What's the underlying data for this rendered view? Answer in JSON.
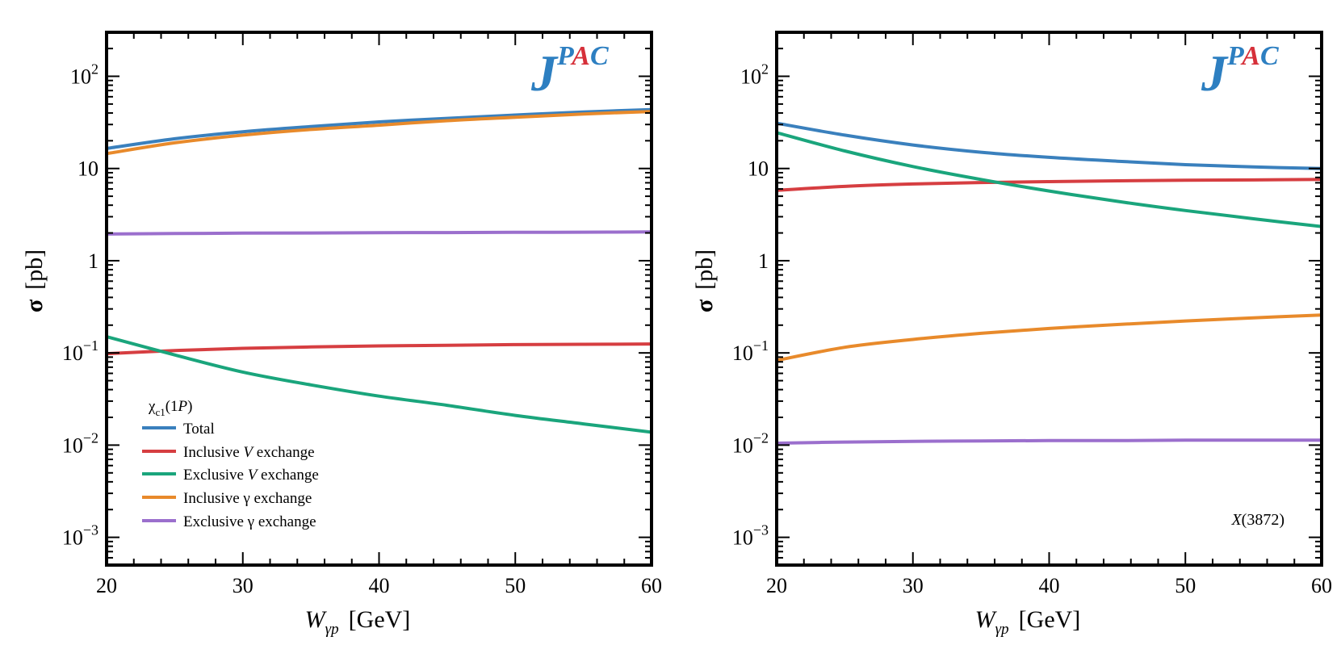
{
  "colors": {
    "total": "#3a80bd",
    "inclusive_v": "#d63e41",
    "exclusive_v": "#1aa57c",
    "inclusive_gamma": "#e88a2b",
    "exclusive_gamma": "#9b6fcd",
    "logo_j": "#2d7fc1",
    "logo_p": "#2d7fc1",
    "logo_a": "#d6303a",
    "logo_c": "#2d7fc1"
  },
  "logo": {
    "j": "J",
    "p": "P",
    "a": "A",
    "c": "C"
  },
  "chart_data": [
    {
      "type": "line",
      "panel": "left",
      "xlabel_main": "W",
      "xlabel_sub": "γp",
      "xlabel_unit": "[GeV]",
      "ylabel_symbol": "σ",
      "ylabel_unit": "[pb]",
      "xlim": [
        20,
        60
      ],
      "ylim": [
        0.0005,
        300
      ],
      "yscale": "log",
      "xticks": [
        20,
        30,
        40,
        50,
        60
      ],
      "xtick_labels": [
        "20",
        "30",
        "40",
        "50",
        "60"
      ],
      "yticks": [
        0.001,
        0.01,
        0.1,
        1,
        10,
        100
      ],
      "ytick_labels": [
        {
          "base": "10",
          "exp": "−3"
        },
        {
          "base": "10",
          "exp": "−2"
        },
        {
          "base": "10",
          "exp": "−1"
        },
        {
          "base": "1",
          "exp": ""
        },
        {
          "base": "10",
          "exp": ""
        },
        {
          "base": "10",
          "exp": "2"
        }
      ],
      "legend_title_main": "χ",
      "legend_title_sub": "c1",
      "legend_title_rest": "(1",
      "legend_title_ital": "P",
      "legend_title_close": ")",
      "legend_position": "lower-left",
      "x": [
        20,
        25,
        30,
        35,
        40,
        45,
        50,
        55,
        60
      ],
      "series": [
        {
          "key": "total",
          "pre": "Total",
          "ital": "",
          "post": "",
          "values": [
            16.5,
            21,
            25,
            28.5,
            32,
            35,
            38,
            41,
            43.5
          ]
        },
        {
          "key": "inclusive_v",
          "pre": "Inclusive ",
          "ital": "V",
          "post": " exchange",
          "values": [
            0.098,
            0.106,
            0.112,
            0.116,
            0.119,
            0.121,
            0.123,
            0.124,
            0.125
          ]
        },
        {
          "key": "exclusive_v",
          "pre": "Exclusive ",
          "ital": "V",
          "post": " exchange",
          "values": [
            0.15,
            0.095,
            0.062,
            0.045,
            0.034,
            0.027,
            0.021,
            0.017,
            0.0138
          ]
        },
        {
          "key": "inclusive_gamma",
          "pre": "Inclusive γ exchange",
          "ital": "",
          "post": "",
          "values": [
            14.5,
            19,
            23,
            26.5,
            29.5,
            33,
            36,
            39,
            41.5
          ]
        },
        {
          "key": "exclusive_gamma",
          "pre": "Exclusive γ exchange",
          "ital": "",
          "post": "",
          "values": [
            1.95,
            1.97,
            1.99,
            2.0,
            2.01,
            2.02,
            2.03,
            2.04,
            2.05
          ]
        }
      ]
    },
    {
      "type": "line",
      "panel": "right",
      "xlabel_main": "W",
      "xlabel_sub": "γp",
      "xlabel_unit": "[GeV]",
      "ylabel_symbol": "σ",
      "ylabel_unit": "[pb]",
      "xlim": [
        20,
        60
      ],
      "ylim": [
        0.0005,
        300
      ],
      "yscale": "log",
      "xticks": [
        20,
        30,
        40,
        50,
        60
      ],
      "xtick_labels": [
        "20",
        "30",
        "40",
        "50",
        "60"
      ],
      "yticks": [
        0.001,
        0.01,
        0.1,
        1,
        10,
        100
      ],
      "ytick_labels": [
        {
          "base": "10",
          "exp": "−3"
        },
        {
          "base": "10",
          "exp": "−2"
        },
        {
          "base": "10",
          "exp": "−1"
        },
        {
          "base": "1",
          "exp": ""
        },
        {
          "base": "10",
          "exp": ""
        },
        {
          "base": "10",
          "exp": "2"
        }
      ],
      "annotation_ital": "X",
      "annotation_rest": "(3872)",
      "x": [
        20,
        25,
        30,
        35,
        40,
        45,
        50,
        55,
        60
      ],
      "series": [
        {
          "key": "total",
          "values": [
            31,
            23,
            18,
            15,
            13.2,
            12,
            11,
            10.4,
            10
          ]
        },
        {
          "key": "inclusive_v",
          "values": [
            5.8,
            6.4,
            6.8,
            7.05,
            7.2,
            7.35,
            7.45,
            7.52,
            7.6
          ]
        },
        {
          "key": "exclusive_v",
          "values": [
            24.5,
            15.5,
            10.5,
            7.6,
            5.7,
            4.4,
            3.5,
            2.85,
            2.35
          ]
        },
        {
          "key": "inclusive_gamma",
          "values": [
            0.083,
            0.115,
            0.14,
            0.163,
            0.184,
            0.203,
            0.222,
            0.24,
            0.258
          ]
        },
        {
          "key": "exclusive_gamma",
          "values": [
            0.0105,
            0.0108,
            0.011,
            0.0111,
            0.0112,
            0.0112,
            0.0113,
            0.0113,
            0.0113
          ]
        }
      ]
    }
  ]
}
